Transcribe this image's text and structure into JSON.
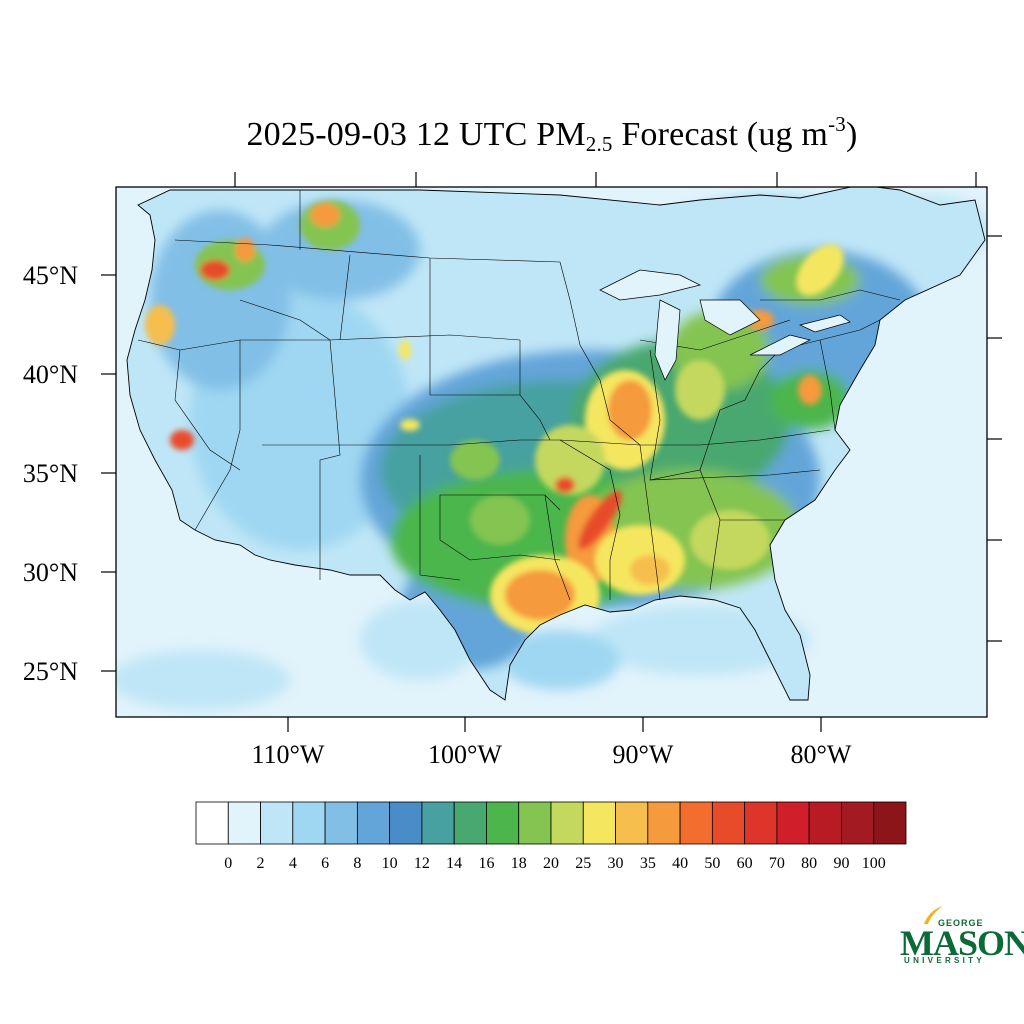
{
  "title": {
    "date": "2025-09-03 12 UTC PM",
    "subscript": "2.5",
    "middle": " Forecast (ug m",
    "superscript": "-3",
    "end": ")"
  },
  "axes": {
    "lat_labels": [
      "45°N",
      "40°N",
      "35°N",
      "30°N",
      "25°N"
    ],
    "lon_labels": [
      "110°W",
      "100°W",
      "90°W",
      "80°W"
    ]
  },
  "colorbar": {
    "labels": [
      "0",
      "2",
      "4",
      "6",
      "8",
      "10",
      "12",
      "14",
      "16",
      "18",
      "20",
      "25",
      "30",
      "35",
      "40",
      "50",
      "60",
      "70",
      "80",
      "90",
      "100"
    ],
    "colors": [
      "#ffffff",
      "#e1f3fb",
      "#bfe6f7",
      "#9fd7f2",
      "#82bfe6",
      "#64a5d9",
      "#4a8cc8",
      "#47a1a0",
      "#48a870",
      "#4cb64c",
      "#84c451",
      "#c4d85e",
      "#f5e660",
      "#f6be4d",
      "#f59a3d",
      "#f26d2e",
      "#e84b2a",
      "#dd352a",
      "#d01f2a",
      "#b81b24",
      "#a31a22",
      "#8b1519"
    ]
  },
  "logo": {
    "line1": "GEORGE",
    "line2": "MASON",
    "line3": "UNIVERSITY"
  }
}
